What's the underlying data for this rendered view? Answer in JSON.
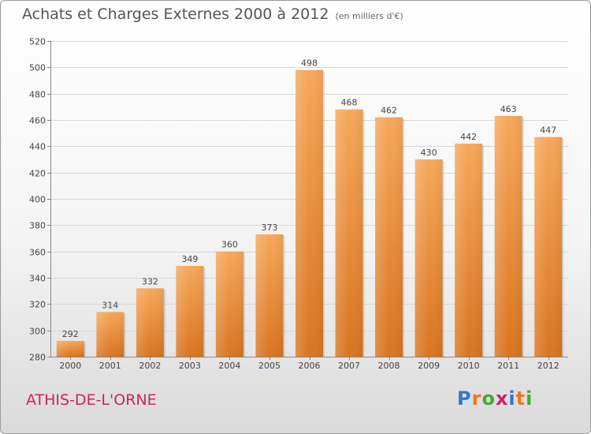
{
  "header": {
    "title": "Achats et Charges Externes 2000 à 2012",
    "unit": "(en milliers d'€)"
  },
  "footer": {
    "commune": "ATHIS-DE-L'ORNE",
    "logo_text": "Proxiti",
    "logo_colors": [
      "#3377cc",
      "#ee7722",
      "#44aa33",
      "#cc2266",
      "#3377cc",
      "#ee7722",
      "#44aa33"
    ]
  },
  "colors": {
    "bar_light": "#f6a85a",
    "bar_dark": "#d9741f",
    "grid": "#d8d8d8"
  },
  "chart_data": {
    "type": "bar",
    "title": "Achats et Charges Externes 2000 à 2012",
    "subtitle": "(en milliers d'€)",
    "xlabel": "",
    "ylabel": "",
    "categories": [
      "2000",
      "2001",
      "2002",
      "2003",
      "2004",
      "2005",
      "2006",
      "2007",
      "2008",
      "2009",
      "2010",
      "2011",
      "2012"
    ],
    "values": [
      292,
      314,
      332,
      349,
      360,
      373,
      498,
      468,
      462,
      430,
      442,
      463,
      447
    ],
    "ylim": [
      280,
      520
    ],
    "yticks": [
      280,
      300,
      320,
      340,
      360,
      380,
      400,
      420,
      440,
      460,
      480,
      500,
      520
    ],
    "grid": true,
    "legend": "none"
  }
}
